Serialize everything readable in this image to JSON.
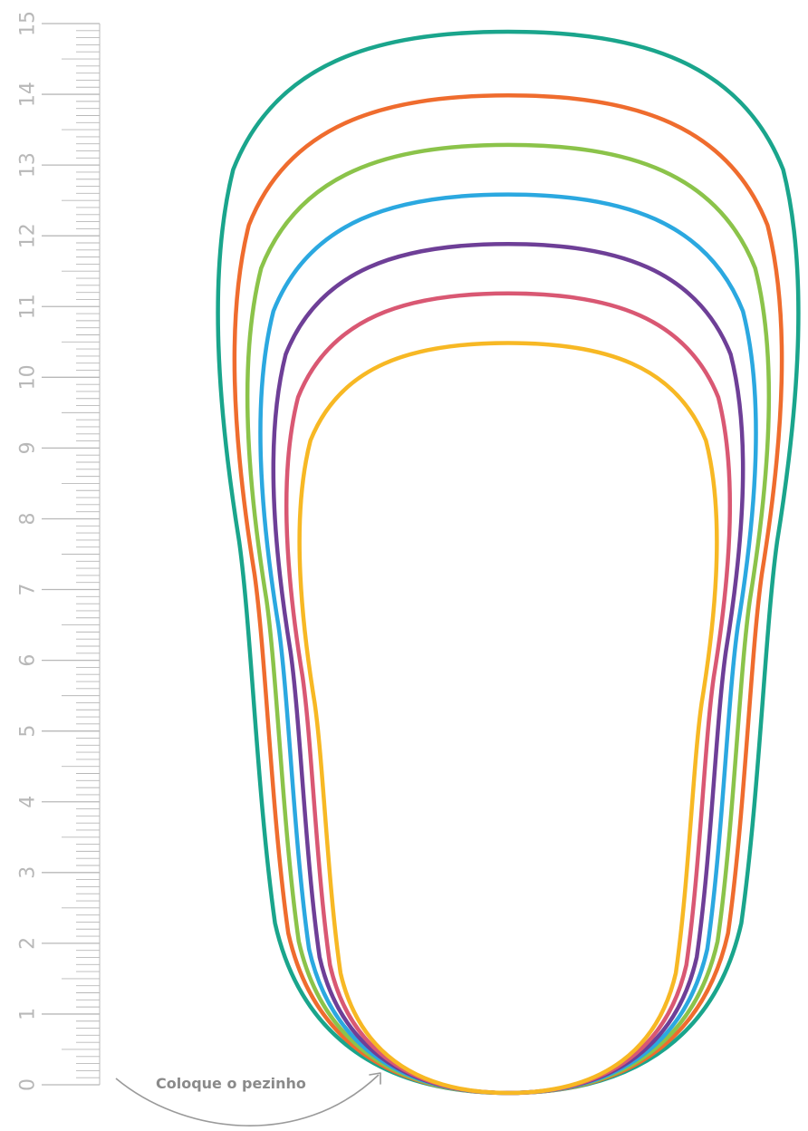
{
  "ruler": {
    "labels": [
      "0",
      "1",
      "2",
      "3",
      "4",
      "5",
      "6",
      "7",
      "8",
      "9",
      "10",
      "11",
      "12",
      "13",
      "14",
      "15"
    ],
    "color": "#b8b8b8"
  },
  "hint": {
    "text": "Coloque o pezinho",
    "color": "#8a8a8a"
  },
  "outlines": [
    {
      "color": "#1aa58c",
      "length_cm": 15.0
    },
    {
      "color": "#ef6c2e",
      "length_cm": 14.1
    },
    {
      "color": "#8bc34a",
      "length_cm": 13.4
    },
    {
      "color": "#2ba8e0",
      "length_cm": 12.7
    },
    {
      "color": "#6e3f97",
      "length_cm": 12.0
    },
    {
      "color": "#d95873",
      "length_cm": 11.3
    },
    {
      "color": "#f7b824",
      "length_cm": 10.6
    }
  ]
}
